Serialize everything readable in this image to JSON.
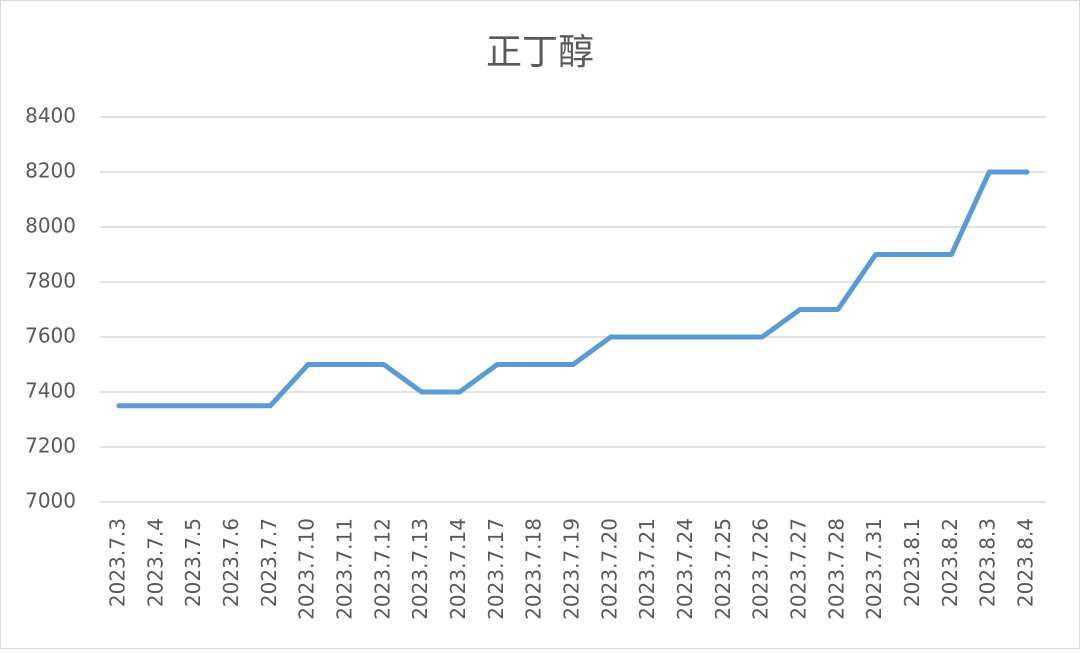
{
  "chart_data": {
    "type": "line",
    "title": "正丁醇",
    "categories": [
      "2023.7.3",
      "2023.7.4",
      "2023.7.5",
      "2023.7.6",
      "2023.7.7",
      "2023.7.10",
      "2023.7.11",
      "2023.7.12",
      "2023.7.13",
      "2023.7.14",
      "2023.7.17",
      "2023.7.18",
      "2023.7.19",
      "2023.7.20",
      "2023.7.21",
      "2023.7.24",
      "2023.7.25",
      "2023.7.26",
      "2023.7.27",
      "2023.7.28",
      "2023.7.31",
      "2023.8.1",
      "2023.8.2",
      "2023.8.3",
      "2023.8.4"
    ],
    "values": [
      7350,
      7350,
      7350,
      7350,
      7350,
      7500,
      7500,
      7500,
      7400,
      7400,
      7500,
      7500,
      7500,
      7600,
      7600,
      7600,
      7600,
      7600,
      7700,
      7700,
      7900,
      7900,
      7900,
      8200,
      8200
    ],
    "color": "#5b9bd5",
    "ylim": [
      7000,
      8400
    ],
    "yticks": [
      7000,
      7200,
      7400,
      7600,
      7800,
      8000,
      8200,
      8400
    ],
    "grid": true
  }
}
